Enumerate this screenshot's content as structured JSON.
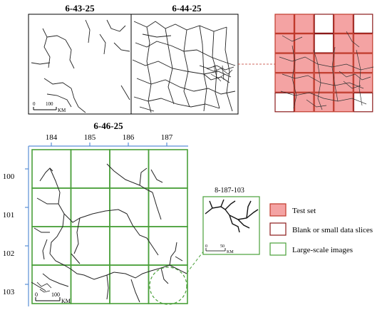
{
  "top_maps": {
    "left_title": "6-43-25",
    "right_title": "6-44-25",
    "scale_start": "0",
    "scale_end": "100",
    "scale_unit": "KM"
  },
  "bottom_map": {
    "title": "6-46-25",
    "columns": [
      "184",
      "185",
      "186",
      "187"
    ],
    "rows": [
      "100",
      "101",
      "102",
      "103"
    ],
    "scale_start": "0",
    "scale_end": "100",
    "scale_unit": "KM"
  },
  "zoom_inset": {
    "title": "8-187-103",
    "scale_start": "0",
    "scale_end": "50",
    "scale_unit": "KM"
  },
  "legend": {
    "items": [
      {
        "label": "Test set",
        "fill": "#f4a3a3",
        "stroke": "#c0392b"
      },
      {
        "label": "Blank or small data slices",
        "fill": "#ffffff",
        "stroke": "#8b1a1a"
      },
      {
        "label": "Large-scale images",
        "fill": "#ffffff",
        "stroke": "#4aa03a"
      }
    ]
  },
  "colors": {
    "test_fill": "#f4a3a3",
    "test_stroke": "#c0392b",
    "blank_stroke": "#8b1a1a",
    "large_stroke": "#4aa03a",
    "axis_blue": "#5b8fd6",
    "connector": "#c0392b"
  }
}
